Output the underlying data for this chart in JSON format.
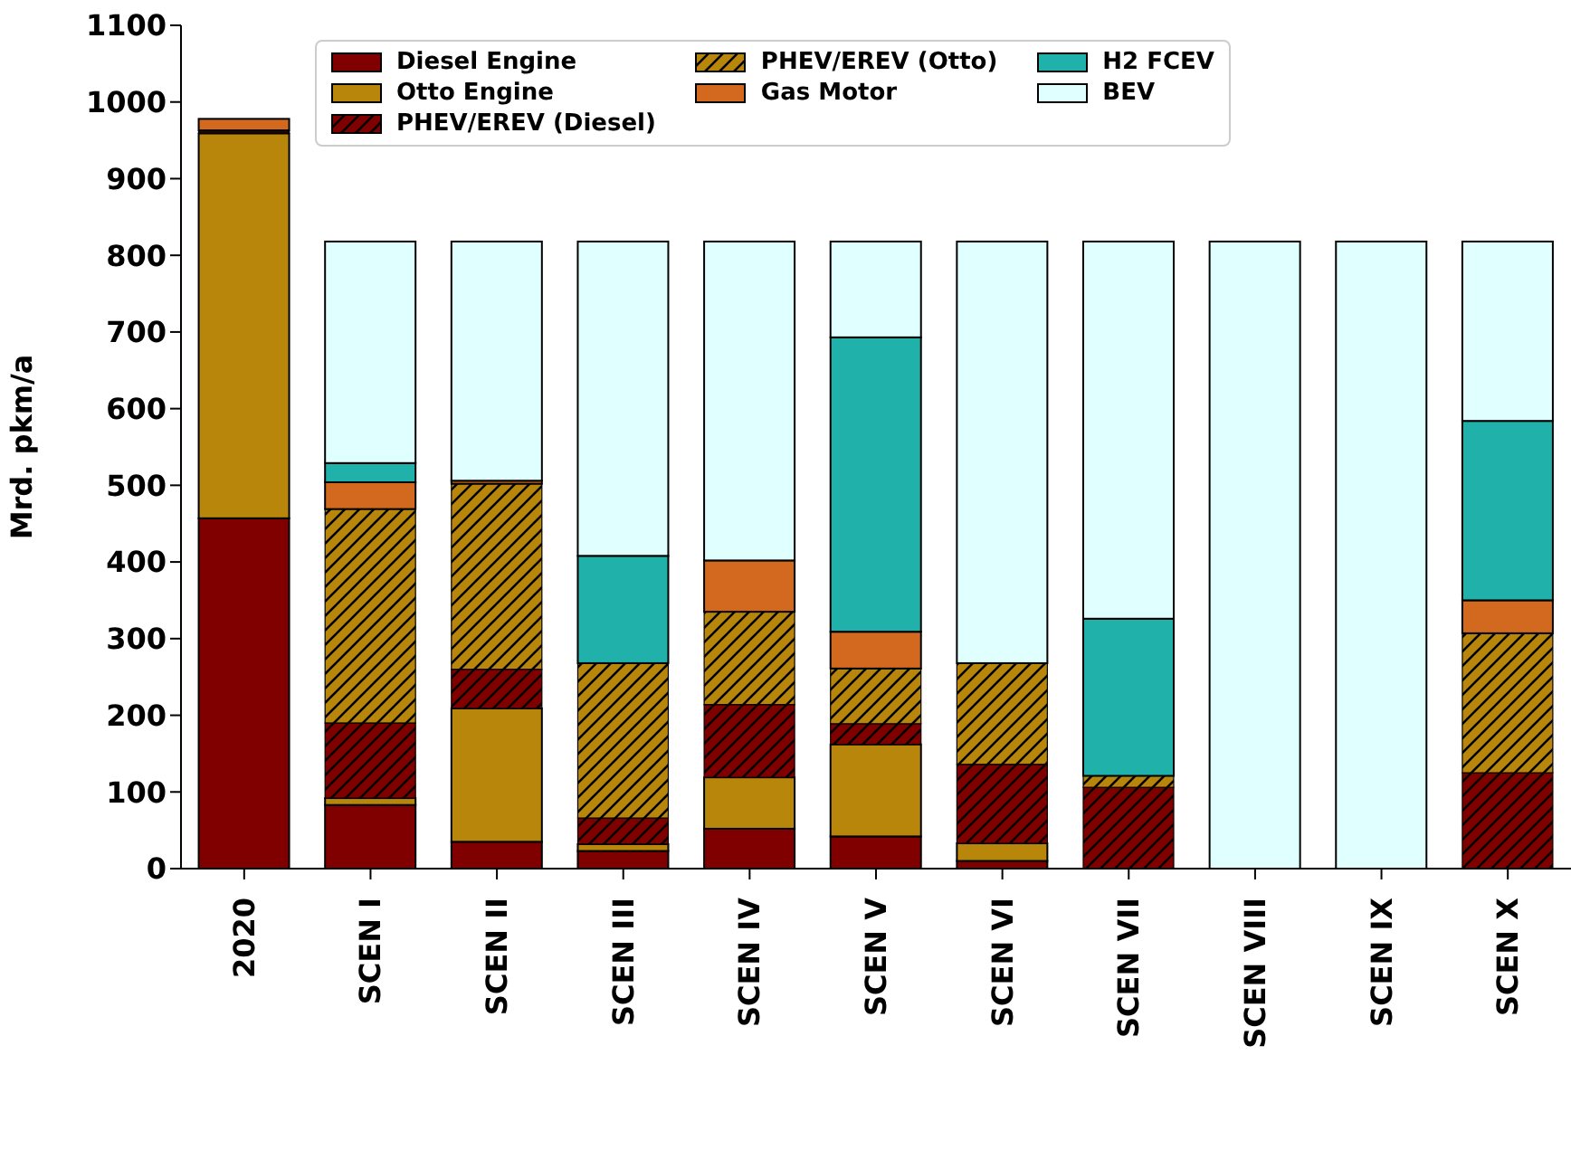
{
  "chart_data": {
    "type": "bar",
    "stacked": true,
    "ylabel": "Mrd. pkm/a",
    "categories": [
      "2020",
      "SCEN I",
      "SCEN II",
      "SCEN III",
      "SCEN IV",
      "SCEN V",
      "SCEN VI",
      "SCEN VII",
      "SCEN VIII",
      "SCEN IX",
      "SCEN X"
    ],
    "series": [
      {
        "name": "Diesel Engine",
        "color": "#800000",
        "values": [
          457,
          83,
          35,
          23,
          52,
          42,
          10,
          0,
          0,
          0,
          0
        ]
      },
      {
        "name": "Otto Engine",
        "color": "#b8860b",
        "values": [
          502,
          9,
          174,
          9,
          67,
          120,
          23,
          0,
          0,
          0,
          0
        ]
      },
      {
        "name": "PHEV/EREV (Diesel)",
        "color": "#800000",
        "values": [
          2,
          98,
          51,
          34,
          95,
          27,
          103,
          106,
          0,
          0,
          125
        ]
      },
      {
        "name": "PHEV/EREV (Otto)",
        "color": "#b8860b",
        "values": [
          2,
          279,
          242,
          202,
          121,
          72,
          132,
          15,
          0,
          0,
          182
        ]
      },
      {
        "name": "Gas Motor",
        "color": "#d2691e",
        "values": [
          15,
          35,
          4,
          0,
          67,
          48,
          0,
          0,
          0,
          0,
          43
        ]
      },
      {
        "name": "H2 FCEV",
        "color": "#20b2aa",
        "values": [
          0,
          25,
          0,
          140,
          0,
          384,
          0,
          205,
          0,
          0,
          234
        ]
      },
      {
        "name": "BEV",
        "color": "#e0ffff",
        "values": [
          0,
          289,
          312,
          410,
          416,
          125,
          550,
          492,
          818,
          818,
          234
        ]
      }
    ],
    "ylim": [
      0,
      1100
    ],
    "yticks": [
      0,
      100,
      200,
      300,
      400,
      500,
      600,
      700,
      800,
      900,
      1000,
      1100
    ],
    "grid": false,
    "legend": "top"
  }
}
